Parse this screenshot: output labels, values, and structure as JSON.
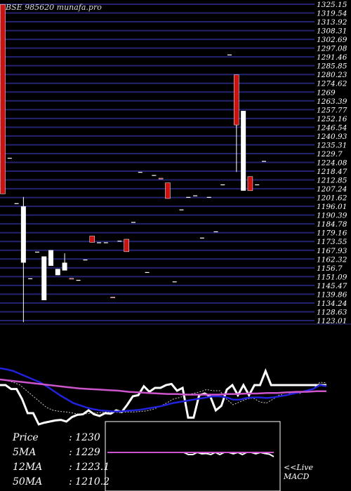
{
  "watermark": "BSE 985620  munafa.pro",
  "chart_data": [
    {
      "type": "candlestick",
      "title": "BSE 985620",
      "ylim": [
        1123.01,
        1325.15
      ],
      "yticks": [
        1325.15,
        1319.54,
        1313.92,
        1308.31,
        1302.69,
        1297.08,
        1291.46,
        1285.85,
        1280.23,
        1274.62,
        1269,
        1263.39,
        1257.77,
        1252.16,
        1246.54,
        1240.93,
        1235.31,
        1229.7,
        1224.08,
        1218.47,
        1212.85,
        1207.24,
        1201.62,
        1196.01,
        1190.39,
        1184.78,
        1179.16,
        1173.55,
        1167.93,
        1162.32,
        1156.7,
        1151.09,
        1145.47,
        1139.86,
        1134.24,
        1128.63,
        1123.01
      ],
      "candles": [
        {
          "o": 1325,
          "h": 1325,
          "l": 1204,
          "c": 1204,
          "color": "red"
        },
        {
          "o": 1227,
          "h": 1227,
          "l": 1227,
          "c": 1227,
          "color": "white"
        },
        {
          "o": 1198,
          "h": 1198,
          "l": 1198,
          "c": 1198,
          "color": "white"
        },
        {
          "o": 1160,
          "h": 1202,
          "l": 1122,
          "c": 1196,
          "color": "white"
        },
        {
          "o": 1150,
          "h": 1150,
          "l": 1150,
          "c": 1150,
          "color": "white"
        },
        {
          "o": 1167,
          "h": 1167,
          "l": 1167,
          "c": 1167,
          "color": "white"
        },
        {
          "o": 1136,
          "h": 1164,
          "l": 1136,
          "c": 1164,
          "color": "white"
        },
        {
          "o": 1158,
          "h": 1168,
          "l": 1158,
          "c": 1168,
          "color": "white"
        },
        {
          "o": 1152,
          "h": 1156,
          "l": 1152,
          "c": 1156,
          "color": "white"
        },
        {
          "o": 1155,
          "h": 1166,
          "l": 1155,
          "c": 1160,
          "color": "white"
        },
        {
          "o": 1150,
          "h": 1150,
          "l": 1150,
          "c": 1150,
          "color": "red"
        },
        {
          "o": 1149,
          "h": 1149,
          "l": 1149,
          "c": 1149,
          "color": "white"
        },
        {
          "o": 1162,
          "h": 1162,
          "l": 1162,
          "c": 1162,
          "color": "white"
        },
        {
          "o": 1177,
          "h": 1177,
          "l": 1173,
          "c": 1173,
          "color": "red"
        },
        {
          "o": 1173,
          "h": 1173,
          "l": 1173,
          "c": 1173,
          "color": "white"
        },
        {
          "o": 1173,
          "h": 1173,
          "l": 1173,
          "c": 1173,
          "color": "white"
        },
        {
          "o": 1138,
          "h": 1138,
          "l": 1138,
          "c": 1138,
          "color": "red"
        },
        {
          "o": 1174,
          "h": 1174,
          "l": 1174,
          "c": 1174,
          "color": "white"
        },
        {
          "o": 1175,
          "h": 1175,
          "l": 1167,
          "c": 1167,
          "color": "red"
        },
        {
          "o": 1186,
          "h": 1186,
          "l": 1186,
          "c": 1186,
          "color": "white"
        },
        {
          "o": 1218,
          "h": 1218,
          "l": 1218,
          "c": 1218,
          "color": "white"
        },
        {
          "o": 1154,
          "h": 1154,
          "l": 1154,
          "c": 1154,
          "color": "white"
        },
        {
          "o": 1216,
          "h": 1216,
          "l": 1216,
          "c": 1216,
          "color": "white"
        },
        {
          "o": 1214,
          "h": 1214,
          "l": 1214,
          "c": 1214,
          "color": "red"
        },
        {
          "o": 1211,
          "h": 1211,
          "l": 1201,
          "c": 1201,
          "color": "red"
        },
        {
          "o": 1148,
          "h": 1148,
          "l": 1148,
          "c": 1148,
          "color": "white"
        },
        {
          "o": 1194,
          "h": 1194,
          "l": 1194,
          "c": 1194,
          "color": "white"
        },
        {
          "o": 1202,
          "h": 1202,
          "l": 1202,
          "c": 1202,
          "color": "white"
        },
        {
          "o": 1203,
          "h": 1203,
          "l": 1203,
          "c": 1203,
          "color": "white"
        },
        {
          "o": 1176,
          "h": 1176,
          "l": 1176,
          "c": 1176,
          "color": "white"
        },
        {
          "o": 1202,
          "h": 1202,
          "l": 1202,
          "c": 1202,
          "color": "white"
        },
        {
          "o": 1180,
          "h": 1180,
          "l": 1180,
          "c": 1180,
          "color": "white"
        },
        {
          "o": 1210,
          "h": 1210,
          "l": 1210,
          "c": 1210,
          "color": "white"
        },
        {
          "o": 1293,
          "h": 1293,
          "l": 1293,
          "c": 1293,
          "color": "white"
        },
        {
          "o": 1280,
          "h": 1280,
          "l": 1218,
          "c": 1248,
          "color": "red"
        },
        {
          "o": 1206,
          "h": 1257,
          "l": 1206,
          "c": 1257,
          "color": "white"
        },
        {
          "o": 1215,
          "h": 1215,
          "l": 1206,
          "c": 1206,
          "color": "red"
        },
        {
          "o": 1210,
          "h": 1210,
          "l": 1210,
          "c": 1210,
          "color": "white"
        },
        {
          "o": 1225,
          "h": 1225,
          "l": 1225,
          "c": 1225,
          "color": "white"
        }
      ]
    },
    {
      "type": "line",
      "series": [
        {
          "key": "price",
          "color": "#ffffff",
          "values": [
            0.3,
            0.3,
            0.37,
            0.37,
            0.55,
            0.8,
            0.8,
            1.0,
            0.97,
            0.95,
            0.93,
            0.92,
            0.95,
            0.87,
            0.83,
            0.82,
            0.75,
            0.82,
            0.85,
            0.8,
            0.81,
            0.75,
            0.78,
            0.65,
            0.5,
            0.48,
            0.32,
            0.42,
            0.35,
            0.35,
            0.3,
            0.28,
            0.4,
            0.35,
            0.88,
            0.88,
            0.48,
            0.45,
            0.5,
            0.75,
            0.67,
            0.38,
            0.3,
            0.48,
            0.3,
            0.48,
            0.3,
            0.3,
            0.05,
            0.3,
            0.3,
            0.3,
            0.3,
            0.3,
            0.3,
            0.3,
            0.3,
            0.3,
            0.3,
            0.3
          ]
        },
        {
          "key": "ema_fast",
          "color": "#cccccc",
          "values": [
            0.2,
            0.22,
            0.25,
            0.3,
            0.4,
            0.5,
            0.6,
            0.7,
            0.75,
            0.77,
            0.78,
            0.8,
            0.82,
            0.81,
            0.8,
            0.79,
            0.78,
            0.78,
            0.79,
            0.78,
            0.78,
            0.77,
            0.76,
            0.73,
            0.68,
            0.62,
            0.55,
            0.52,
            0.48,
            0.45,
            0.42,
            0.38,
            0.4,
            0.4,
            0.55,
            0.65,
            0.6,
            0.55,
            0.53,
            0.6,
            0.62,
            0.55,
            0.47,
            0.48,
            0.42,
            0.45,
            0.4,
            0.37,
            0.25,
            0.26
          ]
        },
        {
          "key": "ma_slow",
          "color": "#2222dd",
          "values": [
            0.0,
            0.02,
            0.05,
            0.1,
            0.15,
            0.2,
            0.25,
            0.32,
            0.4,
            0.48,
            0.55,
            0.62,
            0.66,
            0.7,
            0.73,
            0.75,
            0.76,
            0.77,
            0.77,
            0.76,
            0.75,
            0.74,
            0.72,
            0.7,
            0.68,
            0.65,
            0.62,
            0.6,
            0.58,
            0.56,
            0.54,
            0.52,
            0.5,
            0.5,
            0.52,
            0.56,
            0.56,
            0.53,
            0.52,
            0.52,
            0.53,
            0.52,
            0.5,
            0.48,
            0.45,
            0.43,
            0.4,
            0.37,
            0.3,
            0.32
          ]
        },
        {
          "key": "ma_long",
          "color": "#cc55cc",
          "values": [
            0.2,
            0.22,
            0.24,
            0.26,
            0.28,
            0.3,
            0.32,
            0.34,
            0.36,
            0.37,
            0.38,
            0.39,
            0.4,
            0.42,
            0.43,
            0.44,
            0.45,
            0.46,
            0.46,
            0.47,
            0.47,
            0.47,
            0.47,
            0.46,
            0.46,
            0.45,
            0.45,
            0.44,
            0.44,
            0.43,
            0.42,
            0.42,
            0.41,
            0.41
          ]
        }
      ]
    },
    {
      "type": "line",
      "label": "<<Live MACD",
      "series": [
        {
          "key": "macd",
          "color": "#ffffff",
          "values": [
            0.3,
            0.3,
            0.3,
            0.3,
            0.3,
            0.3,
            0.3,
            0.3,
            0.3,
            0.3,
            0.3,
            0.3,
            0.3,
            0.3,
            0.3,
            0.3,
            0.3,
            0.3,
            0.36,
            0.36,
            0.3,
            0.34,
            0.33,
            0.36,
            0.3,
            0.36,
            0.3,
            0.3,
            0.34,
            0.3,
            0.36,
            0.3,
            0.3,
            0.34,
            0.3,
            0.33,
            0.35,
            0.42
          ]
        },
        {
          "key": "signal",
          "color": "#cc55cc",
          "values": [
            0.3,
            0.3,
            0.3,
            0.3,
            0.3,
            0.3,
            0.3,
            0.3,
            0.3,
            0.3,
            0.3,
            0.3,
            0.3,
            0.3,
            0.3,
            0.3,
            0.3,
            0.3,
            0.3,
            0.3
          ]
        }
      ]
    }
  ],
  "stats": [
    {
      "label": "Price",
      "value": ": 1230"
    },
    {
      "label": "5MA",
      "value": ": 1229"
    },
    {
      "label": "12MA",
      "value": ": 1223.1"
    },
    {
      "label": "50MA",
      "value": ": 1210.2"
    }
  ],
  "macd_label_line1": "<<Live",
  "macd_label_line2": "MACD",
  "colors": {
    "bg": "#000000",
    "grid_band": "#232370",
    "red": "#cc1111",
    "white": "#ffffff"
  }
}
